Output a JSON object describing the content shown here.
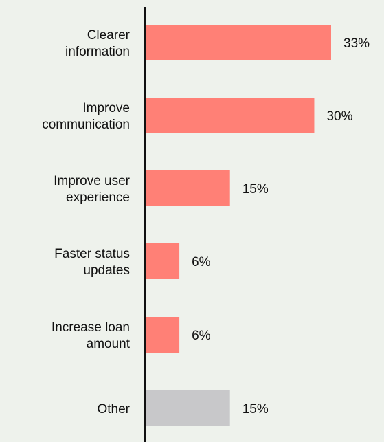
{
  "chart_data": {
    "type": "bar",
    "orientation": "horizontal",
    "categories": [
      [
        "Clearer",
        "information"
      ],
      [
        "Improve",
        "communication"
      ],
      [
        "Improve user",
        "experience"
      ],
      [
        "Faster status",
        "updates"
      ],
      [
        "Increase loan",
        "amount"
      ],
      [
        "Other"
      ]
    ],
    "values": [
      33,
      30,
      15,
      6,
      6,
      15
    ],
    "value_labels": [
      "33%",
      "30%",
      "15%",
      "6%",
      "6%",
      "15%"
    ],
    "bar_colors": [
      "#ff8076",
      "#ff8076",
      "#ff8076",
      "#ff8076",
      "#ff8076",
      "#c8c8ca"
    ],
    "xlim": [
      0,
      33
    ],
    "grid": false,
    "legend": "none",
    "axis_color": "#111111",
    "background": "#eef2ec"
  }
}
